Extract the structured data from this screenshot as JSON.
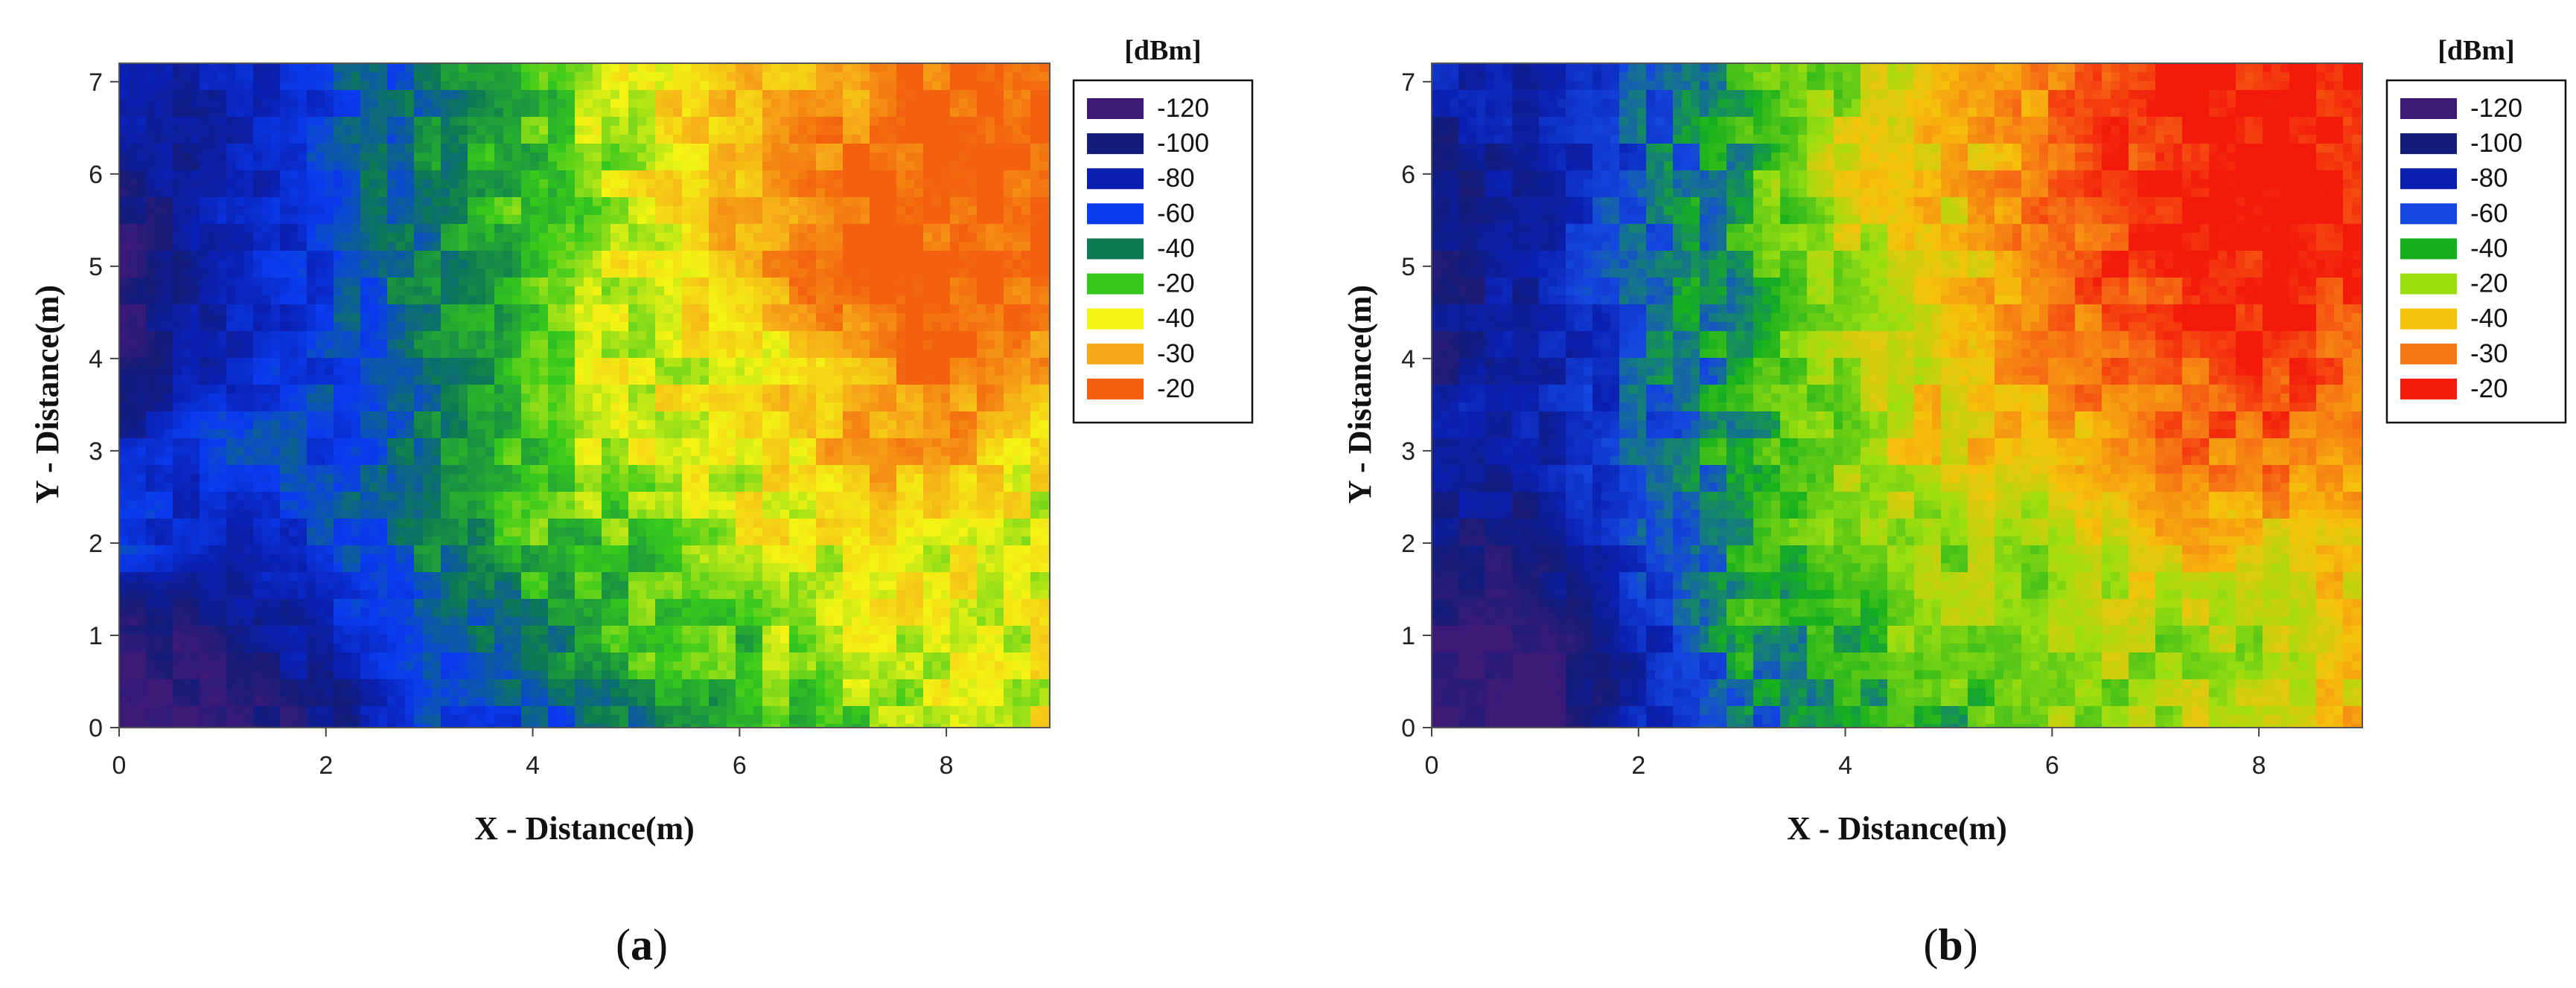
{
  "chart_data": [
    {
      "type": "heatmap",
      "panel_label": "a",
      "xlabel": "X - Distance(m)",
      "ylabel": "Y - Distance(m)",
      "xlim": [
        0,
        9
      ],
      "ylim": [
        0,
        7.2
      ],
      "xticks": [
        "0",
        "2",
        "4",
        "6",
        "8"
      ],
      "yticks": [
        "0",
        "1",
        "2",
        "3",
        "4",
        "5",
        "6",
        "7"
      ],
      "legend_title": "[dBm]",
      "legend_placement": "right",
      "legend": [
        {
          "label": "-120",
          "color": "#3b1a78"
        },
        {
          "label": "-100",
          "color": "#141d78"
        },
        {
          "label": "-80",
          "color": "#0a1fb0"
        },
        {
          "label": "-60",
          "color": "#0a3cf0"
        },
        {
          "label": "-40",
          "color": "#0e7a52"
        },
        {
          "label": "-20",
          "color": "#34c81c"
        },
        {
          "label": "-40",
          "color": "#f4f414"
        },
        {
          "label": "-30",
          "color": "#f6a918"
        },
        {
          "label": "-20",
          "color": "#f3600e"
        }
      ],
      "field": {
        "x": [
          0,
          1,
          2,
          3,
          4,
          5,
          6,
          7,
          8,
          9
        ],
        "y": [
          0,
          1,
          2,
          3,
          4,
          5,
          6,
          7
        ],
        "level_index_rows_from_y0": [
          [
            0,
            0,
            1,
            3,
            3,
            4,
            5,
            5,
            6,
            6
          ],
          [
            0,
            1,
            2,
            3,
            4,
            5,
            5,
            6,
            6,
            6
          ],
          [
            3,
            2,
            3,
            4,
            5,
            5,
            6,
            6,
            6,
            6
          ],
          [
            2,
            3,
            3,
            4,
            5,
            6,
            6,
            7,
            7,
            6
          ],
          [
            1,
            2,
            3,
            4,
            5,
            6,
            6,
            7,
            8,
            7
          ],
          [
            0,
            2,
            3,
            4,
            5,
            6,
            7,
            8,
            8,
            8
          ],
          [
            1,
            2,
            3,
            4,
            5,
            6,
            7,
            8,
            8,
            8
          ],
          [
            2,
            2,
            3,
            4,
            5,
            6,
            7,
            7,
            8,
            8
          ]
        ]
      }
    },
    {
      "type": "heatmap",
      "panel_label": "b",
      "xlabel": "X - Distance(m)",
      "ylabel": "Y - Distance(m)",
      "xlim": [
        0,
        9
      ],
      "ylim": [
        0,
        7.2
      ],
      "xticks": [
        "0",
        "2",
        "4",
        "6",
        "8"
      ],
      "yticks": [
        "0",
        "1",
        "2",
        "3",
        "4",
        "5",
        "6",
        "7"
      ],
      "legend_title": "[dBm]",
      "legend_placement": "right",
      "legend": [
        {
          "label": "-120",
          "color": "#3b1a78"
        },
        {
          "label": "-100",
          "color": "#141d78"
        },
        {
          "label": "-80",
          "color": "#0a1fb0"
        },
        {
          "label": "-60",
          "color": "#1446e0"
        },
        {
          "label": "-40",
          "color": "#16b01e"
        },
        {
          "label": "-20",
          "color": "#9ade10"
        },
        {
          "label": "-40",
          "color": "#f6c20c"
        },
        {
          "label": "-30",
          "color": "#f67614"
        },
        {
          "label": "-20",
          "color": "#f31a0c"
        }
      ],
      "field": {
        "x": [
          0,
          1,
          2,
          3,
          4,
          5,
          6,
          7,
          8,
          9
        ],
        "y": [
          0,
          1,
          2,
          3,
          4,
          5,
          6,
          7
        ],
        "level_index_rows_from_y0": [
          [
            0,
            0,
            2,
            3,
            4,
            4,
            5,
            5,
            6,
            6
          ],
          [
            0,
            0,
            2,
            4,
            4,
            5,
            5,
            5,
            5,
            6
          ],
          [
            1,
            1,
            3,
            4,
            5,
            5,
            5,
            6,
            6,
            6
          ],
          [
            2,
            2,
            3,
            4,
            5,
            6,
            6,
            7,
            7,
            7
          ],
          [
            1,
            2,
            3,
            4,
            5,
            6,
            7,
            7,
            8,
            7
          ],
          [
            1,
            2,
            3,
            4,
            5,
            6,
            7,
            8,
            8,
            8
          ],
          [
            1,
            2,
            3,
            4,
            6,
            6,
            7,
            8,
            8,
            8
          ],
          [
            2,
            2,
            3,
            4,
            5,
            6,
            7,
            8,
            8,
            8
          ]
        ]
      }
    }
  ]
}
